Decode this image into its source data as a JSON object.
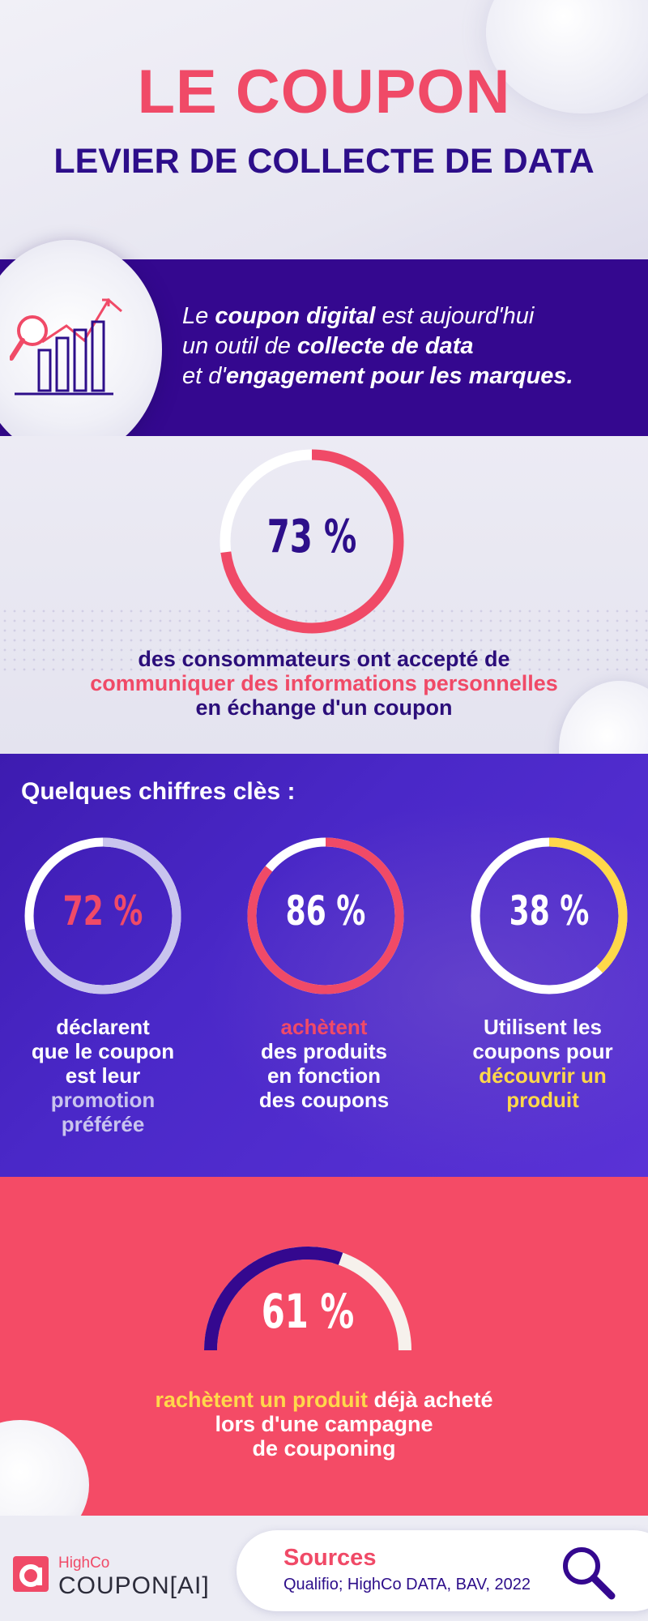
{
  "header": {
    "title": "LE COUPON",
    "subtitle": "LEVIER DE COLLECTE DE DATA"
  },
  "intro": {
    "icon": "chart-magnifier-icon",
    "line1_a": "Le ",
    "line1_b": "coupon digital",
    "line1_c": " est aujourd'hui",
    "line2_a": "un outil de ",
    "line2_b": "collecte de data",
    "line3_a": "et d'",
    "line3_b": "engagement pour les marques."
  },
  "stat_main": {
    "value_label": "73 %",
    "fraction": 0.73,
    "line1": "des consommateurs ont accepté de",
    "line2": "communiquer des informations personnelles",
    "line3": "en échange d'un coupon"
  },
  "key_figures": {
    "title": "Quelques chiffres clès :",
    "items": [
      {
        "value_label": "72 %",
        "fraction": 0.72,
        "ring_color": "#c9c4ee",
        "label_color": "#f04a67",
        "cap1": "déclarent",
        "cap2": "que le coupon",
        "cap3": "est leur",
        "cap4": "promotion",
        "cap5": "préférée"
      },
      {
        "value_label": "86 %",
        "fraction": 0.86,
        "ring_color": "#f04a67",
        "label_color": "#ffffff",
        "cap1": "achètent",
        "cap2": "des produits",
        "cap3": "en fonction",
        "cap4": "des coupons"
      },
      {
        "value_label": "38 %",
        "fraction": 0.38,
        "ring_color": "#ffd84a",
        "label_color": "#ffffff",
        "cap1": "Utilisent les",
        "cap2": "coupons pour",
        "cap3": "découvrir un",
        "cap4": "produit"
      }
    ]
  },
  "stat_61": {
    "value_label": "61 %",
    "fraction": 0.61,
    "line1_a": "rachètent un produit",
    "line1_b": " déjà acheté",
    "line2": "lors d'une campagne",
    "line3": "de couponing"
  },
  "footer": {
    "brand_small": "HighCo",
    "brand_big": "COUPON[AI]",
    "sources_title": "Sources",
    "sources_text": "Qualifio; HighCo DATA, BAV, 2022",
    "sources_icon": "magnifier-icon"
  },
  "colors": {
    "pink": "#f04a67",
    "navy": "#2d0e8a",
    "violet": "#34088f",
    "yellow": "#ffd84a",
    "lavender": "#c9c4ee"
  }
}
